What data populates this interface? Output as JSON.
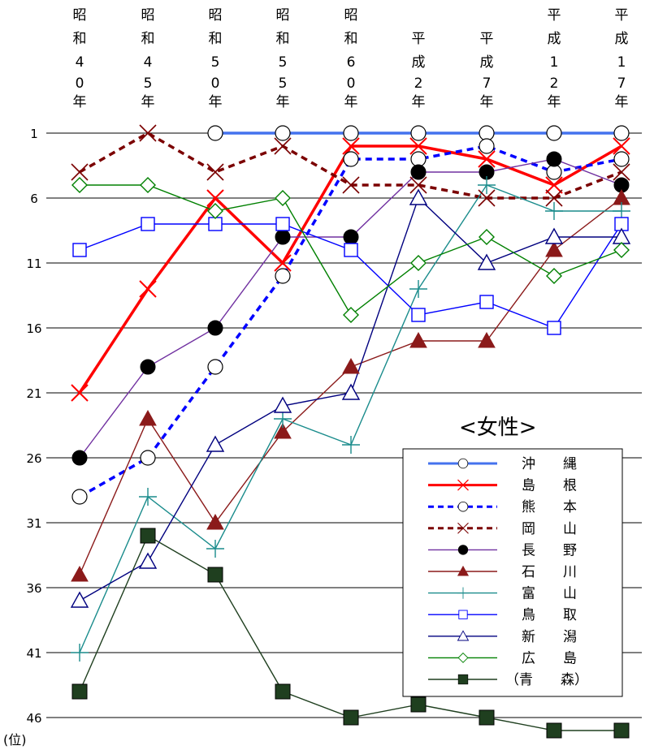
{
  "chart_data": {
    "type": "line",
    "categories": [
      "昭和40年",
      "昭和45年",
      "昭和50年",
      "昭和55年",
      "昭和60年",
      "平成2年",
      "平成7年",
      "平成12年",
      "平成17年"
    ],
    "category_chars": [
      [
        "昭",
        "和",
        "4",
        "0",
        "年"
      ],
      [
        "昭",
        "和",
        "4",
        "5",
        "年"
      ],
      [
        "昭",
        "和",
        "5",
        "0",
        "年"
      ],
      [
        "昭",
        "和",
        "5",
        "5",
        "年"
      ],
      [
        "昭",
        "和",
        "6",
        "0",
        "年"
      ],
      [
        "平",
        "成",
        "2",
        "年"
      ],
      [
        "平",
        "成",
        "7",
        "年"
      ],
      [
        "平",
        "成",
        "1",
        "2",
        "年"
      ],
      [
        "平",
        "成",
        "1",
        "7",
        "年"
      ]
    ],
    "y_ticks": [
      "1",
      "6",
      "11",
      "16",
      "21",
      "26",
      "31",
      "36",
      "41",
      "46"
    ],
    "ylim": [
      1,
      46
    ],
    "y_reversed": true,
    "ylabel": "(位)",
    "annotation": "<女性>",
    "grid": true,
    "legend_position": "bottom-right",
    "series": [
      {
        "name": "沖　　縄",
        "values": [
          null,
          null,
          1,
          1,
          1,
          1,
          1,
          1,
          1
        ],
        "color": "#4472ee",
        "marker": "circle-open",
        "line": "solid-thick"
      },
      {
        "name": "島　　根",
        "values": [
          21,
          13,
          6,
          11,
          2,
          2,
          3,
          5,
          2
        ],
        "color": "#ff0000",
        "marker": "x",
        "line": "solid-thick"
      },
      {
        "name": "熊　　本",
        "values": [
          29,
          26,
          19,
          12,
          3,
          3,
          2,
          4,
          3
        ],
        "color": "#0000ff",
        "marker": "circle-open-black",
        "line": "dashed"
      },
      {
        "name": "岡　　山",
        "values": [
          4,
          1,
          4,
          2,
          5,
          5,
          6,
          6,
          4
        ],
        "color": "#7b0000",
        "marker": "x-dark",
        "line": "dashed"
      },
      {
        "name": "長　　野",
        "values": [
          26,
          19,
          16,
          9,
          9,
          4,
          4,
          3,
          5
        ],
        "color": "#7030a0",
        "marker": "circle-filled",
        "line": "solid"
      },
      {
        "name": "石　　川",
        "values": [
          35,
          23,
          31,
          24,
          19,
          17,
          17,
          10,
          6
        ],
        "color": "#8b1a1a",
        "marker": "triangle-filled",
        "line": "solid"
      },
      {
        "name": "富　　山",
        "values": [
          41,
          29,
          33,
          23,
          25,
          13,
          5,
          7,
          7
        ],
        "color": "#1a8c8c",
        "marker": "plus",
        "line": "solid"
      },
      {
        "name": "鳥　　取",
        "values": [
          10,
          8,
          8,
          8,
          10,
          15,
          14,
          16,
          8
        ],
        "color": "#0000ff",
        "marker": "square-open",
        "line": "solid"
      },
      {
        "name": "新　　潟",
        "values": [
          37,
          34,
          25,
          22,
          21,
          6,
          11,
          9,
          9
        ],
        "color": "#00007f",
        "marker": "triangle-open",
        "line": "solid"
      },
      {
        "name": "広　　島",
        "values": [
          5,
          5,
          7,
          6,
          15,
          11,
          9,
          12,
          10
        ],
        "color": "#008000",
        "marker": "diamond-open",
        "line": "solid"
      },
      {
        "name": "（青　　森）",
        "values": [
          44,
          32,
          35,
          44,
          46,
          45,
          46,
          47,
          47
        ],
        "color": "#1f3f1f",
        "marker": "square-filled",
        "line": "solid"
      }
    ]
  }
}
